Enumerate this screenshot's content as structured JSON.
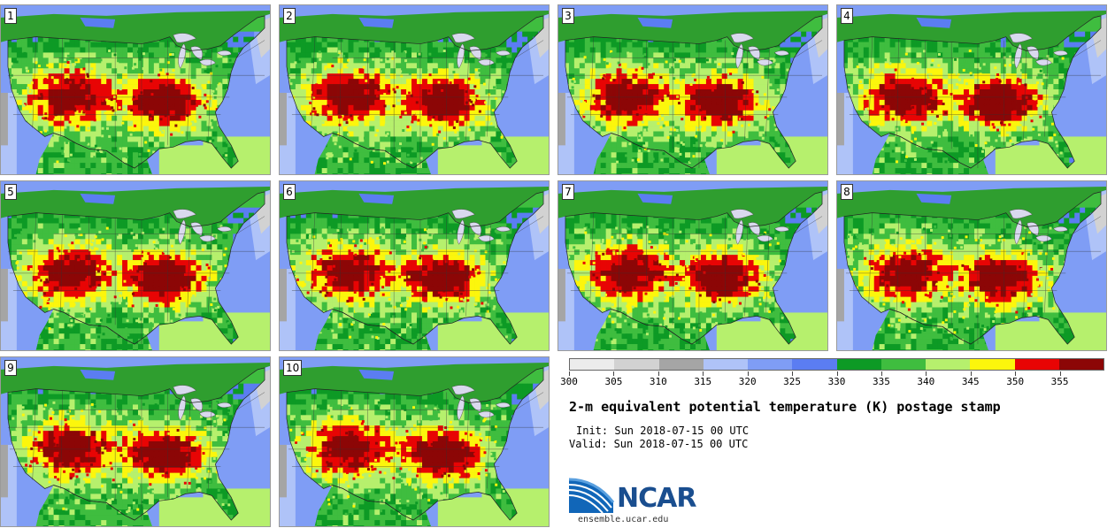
{
  "title": "2-m equivalent potential temperature (K) postage stamp",
  "init": "Init: Sun 2018-07-15 00 UTC",
  "valid": "Valid: Sun 2018-07-15 00 UTC",
  "logo": {
    "name": "NCAR",
    "url": "ensemble.ucar.edu"
  },
  "panels": [
    {
      "label": "1"
    },
    {
      "label": "2"
    },
    {
      "label": "3"
    },
    {
      "label": "4"
    },
    {
      "label": "5"
    },
    {
      "label": "6"
    },
    {
      "label": "7"
    },
    {
      "label": "8"
    },
    {
      "label": "9"
    },
    {
      "label": "10"
    }
  ],
  "colorbar": {
    "unit": "K",
    "ticks": [
      "300",
      "305",
      "310",
      "315",
      "320",
      "325",
      "330",
      "335",
      "340",
      "345",
      "350",
      "355"
    ],
    "bins": [
      {
        "from": 300,
        "to": 305,
        "color": "#ececec"
      },
      {
        "from": 305,
        "to": 310,
        "color": "#d2d2d2"
      },
      {
        "from": 310,
        "to": 315,
        "color": "#a5a5a5"
      },
      {
        "from": 315,
        "to": 320,
        "color": "#afc3f8"
      },
      {
        "from": 320,
        "to": 325,
        "color": "#7f9df5"
      },
      {
        "from": 325,
        "to": 330,
        "color": "#5b7df2"
      },
      {
        "from": 330,
        "to": 335,
        "color": "#0d9a25"
      },
      {
        "from": 335,
        "to": 340,
        "color": "#3fbd3f"
      },
      {
        "from": 340,
        "to": 345,
        "color": "#b6f06d"
      },
      {
        "from": 345,
        "to": 350,
        "color": "#fcf60c"
      },
      {
        "from": 350,
        "to": 355,
        "color": "#e80404"
      },
      {
        "from": 355,
        "to": 360,
        "color": "#8c0606"
      }
    ]
  },
  "colors": {
    "ocean": "#7a98f5",
    "canada": "#2f9e2f",
    "lakes": "#d9d9ee"
  }
}
